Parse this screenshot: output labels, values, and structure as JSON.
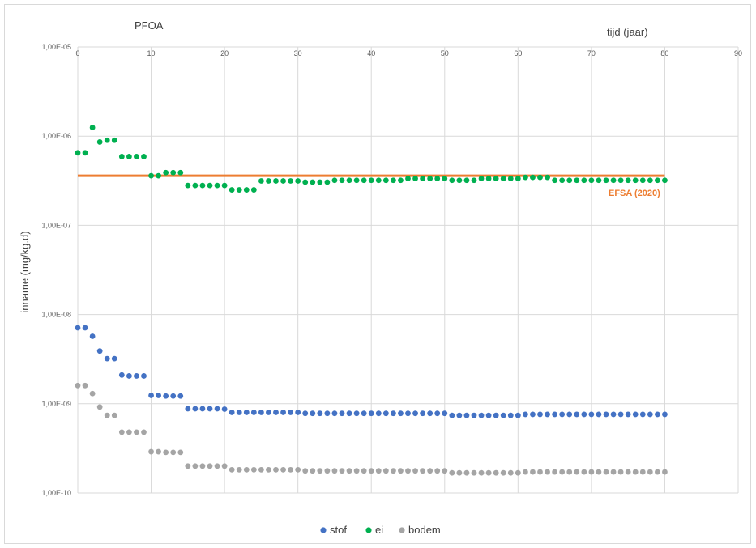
{
  "chart_data": {
    "type": "scatter",
    "title": "PFOA",
    "xlabel": "tijd (jaar)",
    "ylabel": "inname (mg/kg.d)",
    "xlim": [
      0,
      90
    ],
    "ylim": [
      1e-10,
      1e-05
    ],
    "y_scale": "log",
    "grid": true,
    "legend_position": "bottom",
    "x_ticks": [
      "0",
      "10",
      "20",
      "30",
      "40",
      "50",
      "60",
      "70",
      "80",
      "90"
    ],
    "y_ticks": [
      "1,00E-10",
      "1,00E-09",
      "1,00E-08",
      "1,00E-07",
      "1,00E-06",
      "1,00E-05"
    ],
    "reference_line": {
      "label": "EFSA (2020)",
      "value": 3.6e-07,
      "x_range": [
        0,
        80
      ],
      "color": "#ed7d31"
    },
    "series": [
      {
        "name": "stof",
        "color": "#4472c4",
        "segments": [
          [
            [
              0,
              7.1e-09
            ],
            [
              1,
              7.1e-09
            ],
            [
              2,
              5.7e-09
            ],
            [
              3,
              3.9e-09
            ],
            [
              4,
              3.2e-09
            ],
            [
              5,
              3.2e-09
            ],
            [
              6,
              2.1e-09
            ],
            [
              7,
              2.05e-09
            ],
            [
              8,
              2.05e-09
            ],
            [
              9,
              2.05e-09
            ],
            [
              10,
              1.24e-09
            ],
            [
              11,
              1.24e-09
            ],
            [
              12,
              1.22e-09
            ],
            [
              13,
              1.22e-09
            ],
            [
              14,
              1.22e-09
            ]
          ],
          {
            "x_from": 15,
            "x_to": 19,
            "value": 8.8e-10
          },
          {
            "x_from": 20,
            "x_to": 20,
            "value": 8.7e-10
          },
          {
            "x_from": 21,
            "x_to": 30,
            "value": 8e-10
          },
          {
            "x_from": 31,
            "x_to": 50,
            "value": 7.8e-10
          },
          {
            "x_from": 51,
            "x_to": 60,
            "value": 7.4e-10
          },
          {
            "x_from": 61,
            "x_to": 80,
            "value": 7.6e-10
          }
        ]
      },
      {
        "name": "ei",
        "color": "#00b050",
        "segments": [
          [
            [
              0,
              6.5e-07
            ],
            [
              1,
              6.5e-07
            ],
            [
              2,
              1.25e-06
            ],
            [
              3,
              8.6e-07
            ],
            [
              4,
              9e-07
            ],
            [
              5,
              9e-07
            ],
            [
              6,
              5.9e-07
            ],
            [
              7,
              5.9e-07
            ],
            [
              8,
              5.9e-07
            ],
            [
              9,
              5.9e-07
            ],
            [
              10,
              3.6e-07
            ],
            [
              11,
              3.6e-07
            ],
            [
              12,
              3.9e-07
            ],
            [
              13,
              3.9e-07
            ],
            [
              14,
              3.9e-07
            ]
          ],
          {
            "x_from": 15,
            "x_to": 20,
            "value": 2.8e-07
          },
          {
            "x_from": 21,
            "x_to": 24,
            "value": 2.5e-07
          },
          {
            "x_from": 25,
            "x_to": 30,
            "value": 3.15e-07
          },
          {
            "x_from": 31,
            "x_to": 34,
            "value": 3.05e-07
          },
          {
            "x_from": 35,
            "x_to": 44,
            "value": 3.2e-07
          },
          {
            "x_from": 45,
            "x_to": 50,
            "value": 3.35e-07
          },
          {
            "x_from": 51,
            "x_to": 54,
            "value": 3.2e-07
          },
          {
            "x_from": 55,
            "x_to": 60,
            "value": 3.35e-07
          },
          {
            "x_from": 61,
            "x_to": 64,
            "value": 3.45e-07
          },
          {
            "x_from": 65,
            "x_to": 80,
            "value": 3.2e-07
          }
        ]
      },
      {
        "name": "bodem",
        "color": "#a5a5a5",
        "segments": [
          [
            [
              0,
              1.6e-09
            ],
            [
              1,
              1.6e-09
            ],
            [
              2,
              1.3e-09
            ],
            [
              3,
              9.2e-10
            ],
            [
              4,
              7.4e-10
            ],
            [
              5,
              7.4e-10
            ],
            [
              6,
              4.8e-10
            ],
            [
              7,
              4.8e-10
            ],
            [
              8,
              4.8e-10
            ],
            [
              9,
              4.8e-10
            ],
            [
              10,
              2.9e-10
            ],
            [
              11,
              2.9e-10
            ],
            [
              12,
              2.85e-10
            ],
            [
              13,
              2.85e-10
            ],
            [
              14,
              2.85e-10
            ]
          ],
          {
            "x_from": 15,
            "x_to": 20,
            "value": 2e-10
          },
          {
            "x_from": 21,
            "x_to": 30,
            "value": 1.82e-10
          },
          {
            "x_from": 31,
            "x_to": 50,
            "value": 1.77e-10
          },
          {
            "x_from": 51,
            "x_to": 60,
            "value": 1.68e-10
          },
          {
            "x_from": 61,
            "x_to": 80,
            "value": 1.72e-10
          }
        ]
      }
    ]
  }
}
